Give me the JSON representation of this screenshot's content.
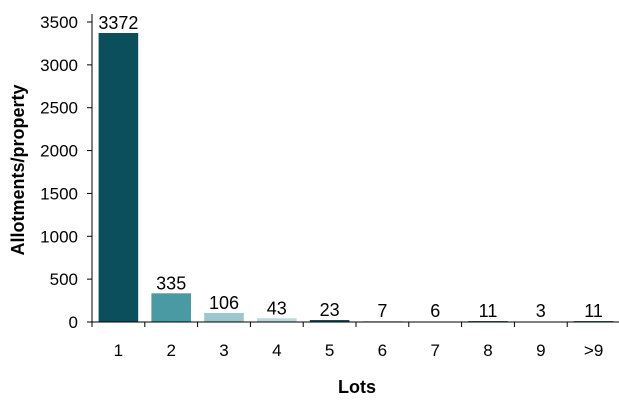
{
  "chart_data": {
    "type": "bar",
    "title": "",
    "xlabel": "Lots",
    "ylabel": "Allotments/property",
    "categories": [
      "1",
      "2",
      "3",
      "4",
      "5",
      "6",
      "7",
      "8",
      "9",
      ">9"
    ],
    "values": [
      3372,
      335,
      106,
      43,
      23,
      7,
      6,
      11,
      3,
      11
    ],
    "data_labels": [
      "3372",
      "335",
      "106",
      "43",
      "23",
      "7",
      "6",
      "11",
      "3",
      "11"
    ],
    "ylim": [
      0,
      3500
    ],
    "yticks": [
      0,
      500,
      1000,
      1500,
      2000,
      2500,
      3000,
      3500
    ],
    "ytick_labels": [
      "0",
      "500",
      "1000",
      "1500",
      "2000",
      "2500",
      "3000",
      "3500"
    ],
    "grid": false,
    "legend": "none",
    "colors": [
      "#0b4f5c",
      "#4a9aa3",
      "#9cc7cc",
      "#b8d8dc",
      "#1a4f5a",
      "#1a4f5a",
      "#1a4f5a",
      "#1a4f5a",
      "#1a4f5a",
      "#1a4f5a"
    ]
  }
}
